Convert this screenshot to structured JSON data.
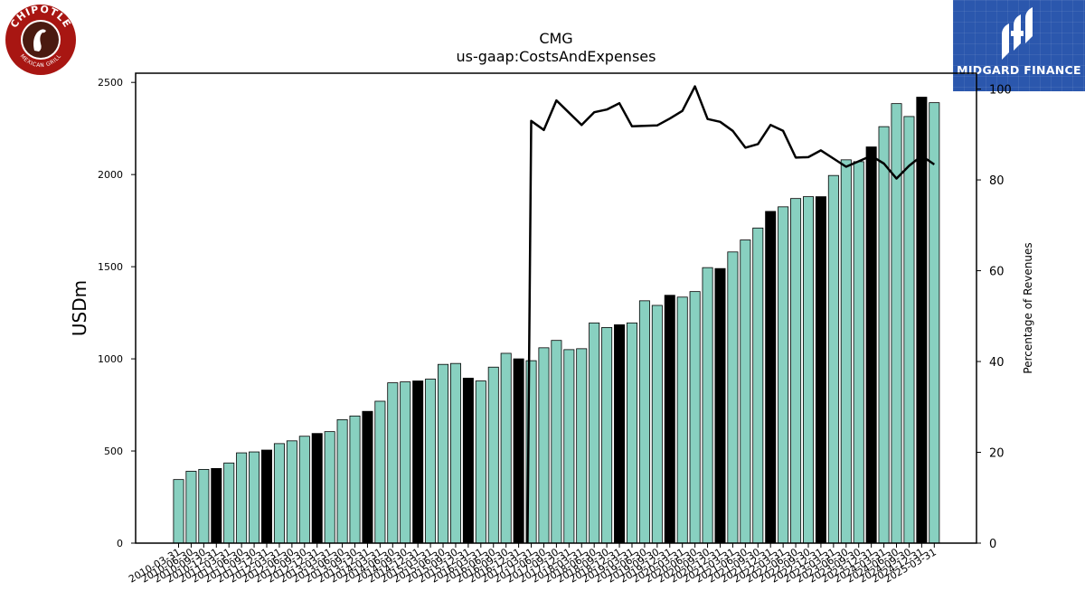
{
  "logos": {
    "left": {
      "text_top": "CHIPOTLE",
      "text_bottom": "MEXICAN GRILL",
      "color": "#a81612"
    },
    "right": {
      "text": "MIDGARD FINANCE",
      "color": "#2b57ad"
    }
  },
  "chart_data": {
    "type": "bar",
    "title": "CMG",
    "subtitle": "us-gaap:CostsAndExpenses",
    "ylabel": "USDm",
    "y2label": "Percentage of Revenues",
    "ylim": [
      0,
      2550
    ],
    "y2lim": [
      0,
      103.5
    ],
    "yticks": [
      0,
      500,
      1000,
      1500,
      2000,
      2500
    ],
    "y2ticks": [
      0,
      20,
      40,
      60,
      80,
      100
    ],
    "colors": {
      "quarter": "#88d0c0",
      "annual": "#000000",
      "line": "#000000"
    },
    "categories": [
      "2010-03-31",
      "2010-06-30",
      "2010-09-30",
      "2010-12-31",
      "2011-03-31",
      "2011-06-30",
      "2011-09-30",
      "2011-12-31",
      "2012-03-31",
      "2012-06-30",
      "2012-09-30",
      "2012-12-31",
      "2013-03-31",
      "2013-06-30",
      "2013-09-30",
      "2013-12-31",
      "2014-03-31",
      "2014-06-30",
      "2014-09-30",
      "2014-12-31",
      "2015-03-31",
      "2015-06-30",
      "2015-09-30",
      "2015-12-31",
      "2016-03-31",
      "2016-06-30",
      "2016-09-30",
      "2016-12-31",
      "2017-03-31",
      "2017-06-30",
      "2017-09-30",
      "2017-12-31",
      "2018-03-31",
      "2018-06-30",
      "2018-09-30",
      "2018-12-31",
      "2019-03-31",
      "2019-06-30",
      "2019-09-30",
      "2019-12-31",
      "2020-03-31",
      "2020-06-30",
      "2020-09-30",
      "2020-12-31",
      "2021-03-31",
      "2021-06-30",
      "2021-09-30",
      "2021-12-31",
      "2022-03-31",
      "2022-06-30",
      "2022-09-30",
      "2022-12-31",
      "2023-03-31",
      "2023-06-30",
      "2023-09-30",
      "2023-12-31",
      "2024-03-31",
      "2024-06-30",
      "2024-09-30",
      "2024-12-31",
      "2025-03-31"
    ],
    "series": [
      {
        "role": "bars",
        "values": [
          345,
          390,
          400,
          405,
          435,
          490,
          495,
          505,
          540,
          555,
          580,
          595,
          605,
          670,
          690,
          715,
          770,
          870,
          875,
          880,
          890,
          970,
          975,
          895,
          880,
          955,
          1030,
          1000,
          990,
          1060,
          1100,
          1050,
          1055,
          1195,
          1170,
          1185,
          1195,
          1315,
          1290,
          1345,
          1335,
          1365,
          1495,
          1490,
          1580,
          1645,
          1710,
          1800,
          1825,
          1870,
          1880,
          1880,
          1995,
          2080,
          2070,
          2150,
          2260,
          2385,
          2315,
          2420,
          2390
        ],
        "annual": [
          false,
          false,
          false,
          true,
          false,
          false,
          false,
          true,
          false,
          false,
          false,
          true,
          false,
          false,
          false,
          true,
          false,
          false,
          false,
          true,
          false,
          false,
          false,
          true,
          false,
          false,
          false,
          true,
          false,
          false,
          false,
          false,
          false,
          false,
          false,
          true,
          false,
          false,
          false,
          true,
          false,
          false,
          false,
          true,
          false,
          false,
          false,
          true,
          false,
          false,
          false,
          true,
          false,
          false,
          false,
          true,
          false,
          false,
          false,
          true,
          false
        ]
      },
      {
        "role": "line",
        "axis": "right",
        "values": [
          null,
          null,
          null,
          null,
          null,
          null,
          null,
          null,
          null,
          null,
          null,
          null,
          null,
          null,
          null,
          null,
          null,
          null,
          null,
          null,
          null,
          null,
          null,
          null,
          null,
          null,
          null,
          null,
          93,
          91,
          97.5,
          94.8,
          92.1,
          94.9,
          95.5,
          96.9,
          91.8,
          91.9,
          92,
          93.5,
          95.2,
          100.6,
          93.4,
          92.8,
          90.8,
          87.1,
          87.9,
          92.1,
          90.8,
          84.9,
          85,
          86.5,
          84.7,
          82.9,
          84.1,
          85.3,
          83.6,
          80.3,
          83.1,
          85.3,
          83.4
        ],
        "pre_step_start": 28
      }
    ]
  }
}
